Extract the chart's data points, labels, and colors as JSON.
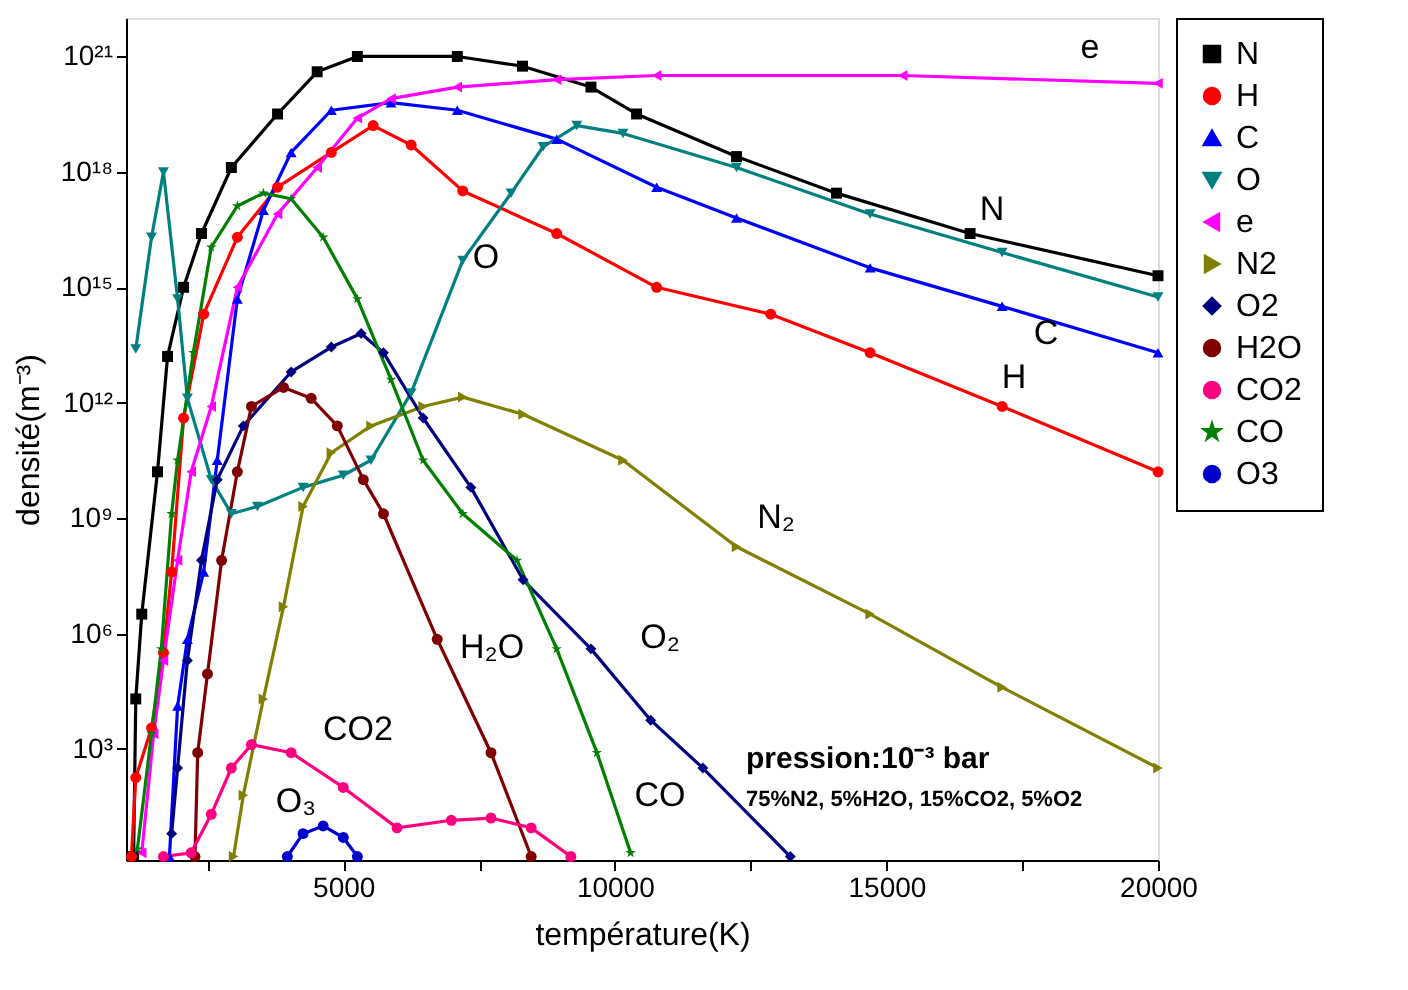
{
  "chart_data": {
    "type": "line",
    "xlabel": "température(K)",
    "ylabel": "densité(m⁻³)",
    "log": "y",
    "grid": false,
    "legend": "right",
    "xlim": [
      1000,
      20000
    ],
    "ylim": [
      1.3,
      1e+22
    ],
    "xticks": [
      {
        "value": 2500,
        "label": null
      },
      5000,
      {
        "value": 7500,
        "label": null
      },
      10000,
      {
        "value": 12500,
        "label": null
      },
      15000,
      {
        "value": 17500,
        "label": null
      },
      20000
    ],
    "yticks": [
      {
        "value": 1000,
        "label": "10³"
      },
      {
        "value": 1000000,
        "label": "10⁶"
      },
      {
        "value": 1000000000,
        "label": "10⁹"
      },
      {
        "value": 1000000000000.0,
        "label": "10¹²"
      },
      {
        "value": 1000000000000000.0,
        "label": "10¹⁵"
      },
      {
        "value": 1e+18,
        "label": "10¹⁸"
      },
      {
        "value": 1e+21,
        "label": "10²¹"
      }
    ],
    "series": [
      {
        "name": "N",
        "color": "#000000",
        "marker": "square",
        "x": [
          1140,
          1180,
          1290,
          1580,
          1765,
          2060,
          2390,
          2940,
          3790,
          4520,
          5260,
          7100,
          8300,
          9560,
          10400,
          12240,
          14080,
          16540,
          20000
        ],
        "values": [
          1.6,
          20000.0,
          3200000.0,
          16000000000.0,
          16000000000000.0,
          1000000000000000.0,
          2.5e+16,
          1.3e+18,
          3.2e+19,
          4e+20,
          1e+21,
          1e+21,
          5.6e+20,
          1.6e+20,
          3.2e+19,
          2.5e+18,
          2.8e+17,
          2.5e+16,
          2000000000000000.0
        ]
      },
      {
        "name": "H",
        "color": "#ff0000",
        "marker": "circle",
        "x": [
          1100,
          1180,
          1470,
          1690,
          1840,
          2060,
          2430,
          3050,
          3790,
          4780,
          5550,
          6250,
          7200,
          8930,
          10770,
          12870,
          14700,
          17130,
          20000
        ],
        "values": [
          1.6,
          180,
          3500,
          320000.0,
          40000000.0,
          400000000000.0,
          200000000000000.0,
          2e+16,
          4e+17,
          3.2e+18,
          1.6e+19,
          5e+18,
          3.2e+17,
          2.5e+16,
          1000000000000000.0,
          200000000000000.0,
          20000000000000.0,
          800000000000.0,
          16000000000.0
        ]
      },
      {
        "name": "C",
        "color": "#0000ff",
        "marker": "triangle",
        "x": [
          1800,
          1950,
          2130,
          2430,
          2680,
          3050,
          3530,
          4040,
          4780,
          5880,
          7100,
          8930,
          10770,
          12240,
          14700,
          17130,
          20000
        ],
        "values": [
          1.6,
          13000.0,
          710000.0,
          40000000.0,
          32000000000.0,
          500000000000000.0,
          1e+17,
          3.2e+18,
          4e+19,
          6.3e+19,
          4e+19,
          7.1e+18,
          4e+17,
          6.3e+16,
          3200000000000000.0,
          320000000000000.0,
          20000000000000.0
        ]
      },
      {
        "name": "O",
        "color": "#008080",
        "marker": "triangle-down",
        "x": [
          1180,
          1470,
          1690,
          1950,
          2130,
          2570,
          2940,
          3420,
          4260,
          5000,
          5510,
          6250,
          7200,
          8090,
          8680,
          9300,
          10150,
          12240,
          14700,
          17130,
          20000
        ],
        "values": [
          25000000000000.0,
          2e+16,
          1e+18,
          500000000000000.0,
          1300000000000.0,
          10000000000.0,
          1300000000.0,
          2000000000.0,
          6300000000.0,
          13000000000.0,
          32000000000.0,
          1800000000000.0,
          5000000000000000.0,
          2.8e+17,
          4.5e+18,
          1.6e+19,
          1e+19,
          1.3e+18,
          8e+16,
          8000000000000000.0,
          560000000000000.0
        ]
      },
      {
        "name": "e",
        "color": "#ff00ff",
        "marker": "triangle-left",
        "x": [
          1290,
          1510,
          1690,
          1950,
          2200,
          2570,
          3050,
          3790,
          4520,
          5260,
          5880,
          7100,
          8930,
          10770,
          15300,
          20000
        ],
        "values": [
          2,
          2500,
          200000.0,
          80000000.0,
          16000000000.0,
          800000000000.0,
          1000000000000000.0,
          8e+16,
          1.3e+18,
          2.5e+19,
          8e+19,
          1.6e+20,
          2.5e+20,
          3.2e+20,
          3.2e+20,
          2e+20
        ]
      },
      {
        "name": "N2",
        "color": "#808000",
        "marker": "triangle-right",
        "x": [
          2980,
          3160,
          3530,
          3900,
          4260,
          4780,
          5510,
          6470,
          7200,
          8310,
          10150,
          12240,
          14700,
          17130,
          20000
        ],
        "values": [
          1.6,
          63,
          20000.0,
          5000000.0,
          2000000000.0,
          50000000000.0,
          250000000000.0,
          800000000000.0,
          1400000000000.0,
          500000000000.0,
          32000000000.0,
          180000000.0,
          3200000.0,
          40000.0,
          320
        ]
      },
      {
        "name": "O2",
        "color": "#000080",
        "marker": "diamond",
        "x": [
          1840,
          1950,
          2130,
          2390,
          2680,
          3160,
          4040,
          4780,
          5330,
          5740,
          6470,
          7350,
          8310,
          9560,
          10660,
          11620,
          13230
        ],
        "values": [
          6.3,
          320,
          200000.0,
          80000000.0,
          10000000000.0,
          250000000000.0,
          6300000000000.0,
          28000000000000.0,
          63000000000000.0,
          20000000000000.0,
          400000000000.0,
          6300000000.0,
          25000000.0,
          400000.0,
          5600,
          320,
          1.6
        ]
      },
      {
        "name": "H2O",
        "color": "#800000",
        "marker": "circle",
        "x": [
          2270,
          2320,
          2500,
          2760,
          3050,
          3310,
          3900,
          4410,
          4890,
          5370,
          5740,
          6730,
          7720,
          8460
        ],
        "values": [
          1.6,
          800,
          89000.0,
          80000000.0,
          16000000000.0,
          800000000000.0,
          2500000000000.0,
          1300000000000.0,
          250000000000.0,
          10000000000.0,
          1300000000.0,
          710000.0,
          800,
          1.6
        ]
      },
      {
        "name": "CO2",
        "color": "#ff0080",
        "marker": "circle",
        "x": [
          1690,
          2200,
          2570,
          2940,
          3310,
          4040,
          5000,
          5990,
          6990,
          7720,
          8460,
          9190
        ],
        "values": [
          1.6,
          2,
          20,
          320,
          1300,
          800,
          100,
          8.9,
          14,
          16,
          8.9,
          1.6
        ]
      },
      {
        "name": "CO",
        "color": "#008000",
        "marker": "star",
        "x": [
          1210,
          1470,
          1650,
          1840,
          1950,
          2240,
          2570,
          3050,
          3530,
          4040,
          4630,
          5260,
          5880,
          6470,
          7200,
          8200,
          8930,
          9670,
          10290
        ],
        "values": [
          2.5,
          2500,
          400000.0,
          1300000000.0,
          32000000000.0,
          20000000000000.0,
          1.1e+16,
          1.3e+17,
          2.8e+17,
          2e+17,
          2e+16,
          500000000000000.0,
          4000000000000.0,
          32000000000.0,
          1300000000.0,
          80000000.0,
          400000.0,
          800,
          2
        ]
      },
      {
        "name": "O3",
        "color": "#0000cc",
        "marker": "circle",
        "x": [
          3970,
          4260,
          4630,
          5000,
          5260
        ],
        "values": [
          1.6,
          6.3,
          10,
          5,
          1.6
        ]
      }
    ],
    "annotations": [
      "e",
      "N",
      "C",
      "H",
      "O",
      "N₂",
      "H₂O",
      "O₂",
      "CO2",
      "CO",
      "O₃",
      "pression:10⁻³ bar",
      "75%N2, 5%H2O, 15%CO2, 5%O2"
    ]
  }
}
